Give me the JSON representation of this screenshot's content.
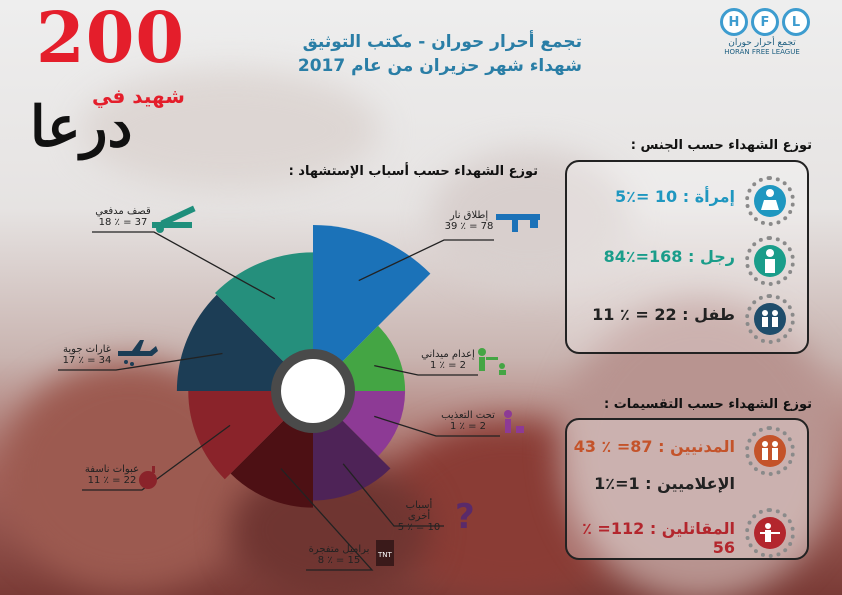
{
  "title": {
    "number": "200",
    "word_martyr": "شهيد في",
    "city": "درعا",
    "line1": "تجمع أحرار حوران - مكتب التوثيق",
    "line2": "شهداء شهر حزيران  من عام 2017"
  },
  "logo": {
    "letters": [
      "H",
      "F",
      "L"
    ],
    "arabic": "تجمع أحرار حوران",
    "english": "HORAN FREE LEAGUE"
  },
  "chart_data": {
    "type": "pie",
    "title": "توزع الشهداء حسب أسباب الإستشهاد :",
    "slices": [
      {
        "label": "إطلاق نار",
        "value": 78,
        "percent": 39,
        "color": "#1b72b8"
      },
      {
        "label": "إعدام ميداني",
        "value": 2,
        "percent": 1,
        "color": "#44a544"
      },
      {
        "label": "تحت التعذيب",
        "value": 2,
        "percent": 1,
        "color": "#8d3a95"
      },
      {
        "label": "أسباب أخرى",
        "value": 10,
        "percent": 5,
        "color": "#4e2357"
      },
      {
        "label": "براميل متفجرة",
        "value": 15,
        "percent": 8,
        "color": "#4d1014"
      },
      {
        "label": "عبوات ناسفة",
        "value": 22,
        "percent": 11,
        "color": "#8a232a"
      },
      {
        "label": "غارات جوية",
        "value": 34,
        "percent": 17,
        "color": "#1c3d55"
      },
      {
        "label": "قصف مدفعي",
        "value": 37,
        "percent": 18,
        "color": "#258f7c"
      }
    ],
    "slice_texts": [
      "78 = ٪ 39",
      "2 = ٪ 1",
      "2 = ٪ 1",
      "10 = ٪ 5",
      "15 = ٪ 8",
      "22 = ٪ 11",
      "34 = ٪ 17",
      "37 = ٪ 18"
    ]
  },
  "gender": {
    "title": "توزع الشهداء حسب الجنس :",
    "rows": [
      {
        "text": "إمرأة :  10 =٪5",
        "color": "#1f97c0",
        "icon": "woman-icon"
      },
      {
        "text": "رجل : 168=٪84",
        "color": "#1a9d8a",
        "icon": "man-icon"
      },
      {
        "text": "طفل : 22 = ٪ 11",
        "color": "#1f4d6b",
        "icon": "children-icon"
      }
    ]
  },
  "division": {
    "title": "توزع الشهداء حسب التقسيمات :",
    "rows": [
      {
        "text": "المدنيين : 87= ٪ 43",
        "color": "#c4532a",
        "icon": "family-icon"
      },
      {
        "text": "الإعلاميين : 1=٪1",
        "color": "#222222",
        "icon": ""
      },
      {
        "text": "المقاتلين : 112= ٪ 56",
        "color": "#b3262d",
        "icon": "soldier-icon"
      }
    ]
  }
}
